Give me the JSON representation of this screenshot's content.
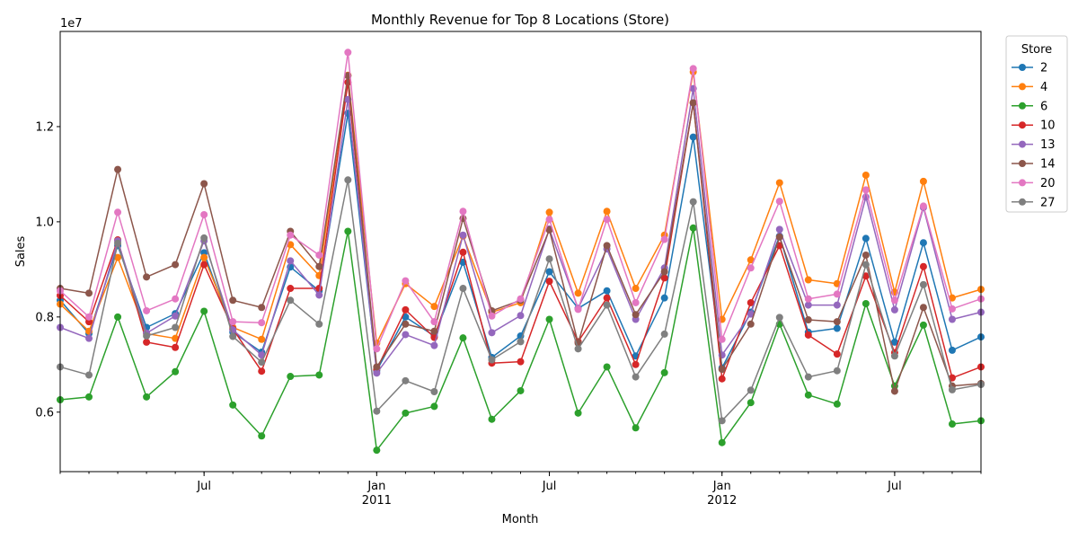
{
  "chart_data": {
    "type": "line",
    "title": "Monthly Revenue for Top 8 Locations (Store)",
    "xlabel": "Month",
    "ylabel": "Sales",
    "y_scale_label": "1e7",
    "x": [
      "2010-02",
      "2010-03",
      "2010-04",
      "2010-05",
      "2010-06",
      "2010-07",
      "2010-08",
      "2010-09",
      "2010-10",
      "2010-11",
      "2010-12",
      "2011-01",
      "2011-02",
      "2011-03",
      "2011-04",
      "2011-05",
      "2011-06",
      "2011-07",
      "2011-08",
      "2011-09",
      "2011-10",
      "2011-11",
      "2011-12",
      "2012-01",
      "2012-02",
      "2012-03",
      "2012-04",
      "2012-05",
      "2012-06",
      "2012-07",
      "2012-08",
      "2012-09",
      "2012-10"
    ],
    "xlim": [
      "2010-02",
      "2012-10"
    ],
    "ylim": [
      4.75,
      14.0
    ],
    "y_ticks": [
      6,
      8,
      10,
      12
    ],
    "y_tick_labels": [
      "0.6",
      "0.8",
      "1.0",
      "1.2"
    ],
    "x_ticks": [
      {
        "x": "2010-07",
        "label": "Jul",
        "sublabel": ""
      },
      {
        "x": "2011-01",
        "label": "Jan",
        "sublabel": "2011"
      },
      {
        "x": "2011-07",
        "label": "Jul",
        "sublabel": ""
      },
      {
        "x": "2012-01",
        "label": "Jan",
        "sublabel": "2012"
      },
      {
        "x": "2012-07",
        "label": "Jul",
        "sublabel": ""
      }
    ],
    "grid": false,
    "legend": {
      "title": "Store",
      "placement": "outside-top-right"
    },
    "series": [
      {
        "name": "2",
        "color": "#1f77b4",
        "values": [
          8.35,
          7.65,
          9.5,
          7.78,
          8.07,
          9.35,
          7.68,
          7.26,
          9.05,
          8.55,
          12.28,
          6.87,
          8.0,
          7.6,
          9.15,
          7.15,
          7.6,
          8.95,
          8.18,
          8.55,
          7.18,
          8.4,
          11.78,
          6.93,
          8.1,
          9.7,
          7.68,
          7.76,
          9.65,
          7.47,
          9.56,
          7.3,
          7.58
        ]
      },
      {
        "name": "4",
        "color": "#ff7f0e",
        "values": [
          8.27,
          7.7,
          9.25,
          7.65,
          7.55,
          9.25,
          7.78,
          7.53,
          9.52,
          8.87,
          13.08,
          7.45,
          8.7,
          8.22,
          9.7,
          8.1,
          8.3,
          10.2,
          8.5,
          10.22,
          8.6,
          9.72,
          13.15,
          7.95,
          9.2,
          10.82,
          8.78,
          8.7,
          10.98,
          8.52,
          10.85,
          8.4,
          8.58
        ]
      },
      {
        "name": "6",
        "color": "#2ca02c",
        "values": [
          6.26,
          6.32,
          8.0,
          6.32,
          6.85,
          8.12,
          6.15,
          5.5,
          6.75,
          6.78,
          9.8,
          5.2,
          5.98,
          6.12,
          7.56,
          5.85,
          6.45,
          7.95,
          5.98,
          6.95,
          5.67,
          6.83,
          9.87,
          5.36,
          6.2,
          7.85,
          6.36,
          6.17,
          8.28,
          6.55,
          7.83,
          5.75,
          5.82
        ]
      },
      {
        "name": "10",
        "color": "#d62728",
        "values": [
          8.45,
          7.9,
          9.62,
          7.47,
          7.36,
          9.1,
          7.75,
          6.86,
          8.6,
          8.6,
          12.93,
          6.9,
          8.15,
          7.57,
          9.36,
          7.03,
          7.06,
          8.75,
          7.48,
          8.4,
          7.0,
          8.82,
          12.5,
          6.7,
          8.3,
          9.5,
          7.62,
          7.22,
          8.86,
          7.25,
          9.06,
          6.72,
          6.95
        ]
      },
      {
        "name": "13",
        "color": "#9467bd",
        "values": [
          7.78,
          7.55,
          9.6,
          7.66,
          8.02,
          9.6,
          7.73,
          7.2,
          9.18,
          8.46,
          12.57,
          6.82,
          7.63,
          7.4,
          9.72,
          7.67,
          8.03,
          9.85,
          8.18,
          9.43,
          7.95,
          9.03,
          12.8,
          7.2,
          8.06,
          9.84,
          8.25,
          8.25,
          10.52,
          8.15,
          10.3,
          7.95,
          8.1
        ]
      },
      {
        "name": "14",
        "color": "#8c564b",
        "values": [
          8.6,
          8.5,
          11.1,
          8.84,
          9.1,
          10.8,
          8.35,
          8.2,
          9.8,
          9.06,
          13.07,
          6.95,
          7.85,
          7.7,
          10.07,
          8.13,
          8.35,
          9.83,
          7.45,
          9.5,
          8.05,
          8.95,
          12.5,
          6.9,
          7.85,
          9.68,
          7.94,
          7.9,
          9.3,
          6.44,
          8.2,
          6.55,
          6.6
        ]
      },
      {
        "name": "20",
        "color": "#e377c2",
        "values": [
          8.55,
          8.0,
          10.2,
          8.13,
          8.38,
          10.15,
          7.9,
          7.88,
          9.72,
          9.3,
          13.56,
          7.33,
          8.76,
          7.9,
          10.22,
          8.02,
          8.38,
          10.05,
          8.16,
          10.05,
          8.3,
          9.63,
          13.22,
          7.53,
          9.03,
          10.43,
          8.38,
          8.48,
          10.67,
          8.35,
          10.33,
          8.17,
          8.38
        ]
      },
      {
        "name": "27",
        "color": "#7f7f7f",
        "values": [
          6.95,
          6.78,
          9.55,
          7.6,
          7.78,
          9.66,
          7.59,
          7.05,
          8.35,
          7.85,
          10.88,
          6.02,
          6.66,
          6.43,
          8.6,
          7.1,
          7.48,
          9.22,
          7.33,
          8.25,
          6.74,
          7.64,
          10.42,
          5.82,
          6.46,
          7.99,
          6.74,
          6.87,
          9.1,
          7.18,
          8.68,
          6.47,
          6.58
        ]
      }
    ]
  }
}
